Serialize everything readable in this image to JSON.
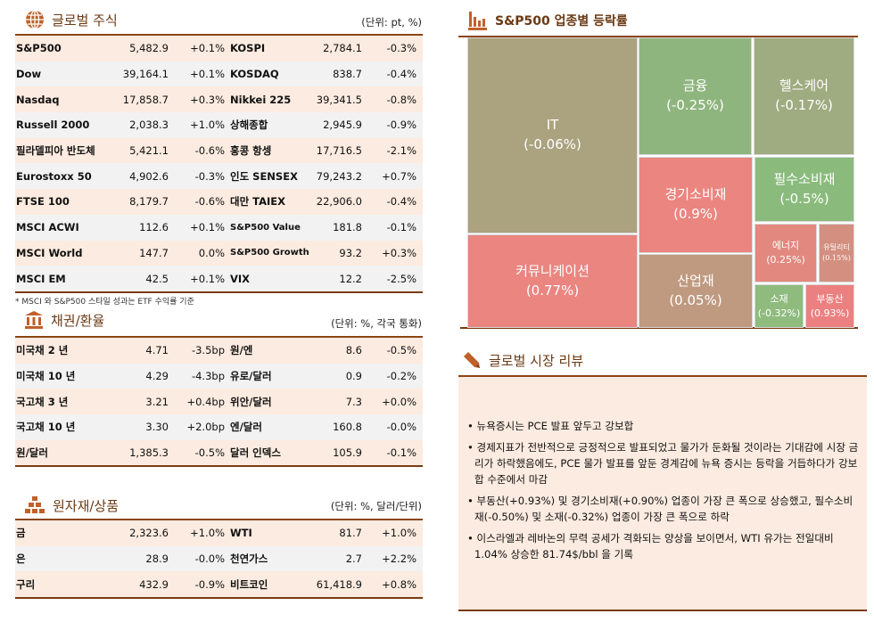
{
  "stocks": {
    "title": "글로벌 주식",
    "unit": "(단위: pt, %)",
    "rows": [
      [
        "S&P500",
        "5,482.9",
        "+0.1%",
        "KOSPI",
        "2,784.1",
        "-0.3%"
      ],
      [
        "Dow",
        "39,164.1",
        "+0.1%",
        "KOSDAQ",
        "838.7",
        "-0.4%"
      ],
      [
        "Nasdaq",
        "17,858.7",
        "+0.3%",
        "Nikkei 225",
        "39,341.5",
        "-0.8%"
      ],
      [
        "Russell 2000",
        "2,038.3",
        "+1.0%",
        "상해종합",
        "2,945.9",
        "-0.9%"
      ],
      [
        "필라델피아 반도체",
        "5,421.1",
        "-0.6%",
        "홍콩 항셍",
        "17,716.5",
        "-2.1%"
      ],
      [
        "Eurostoxx 50",
        "4,902.6",
        "-0.3%",
        "인도 SENSEX",
        "79,243.2",
        "+0.7%"
      ],
      [
        "FTSE 100",
        "8,179.7",
        "-0.6%",
        "대만 TAIEX",
        "22,906.0",
        "-0.4%"
      ],
      [
        "MSCI ACWI",
        "112.6",
        "+0.1%",
        "S&P500 Value",
        "181.8",
        "-0.1%"
      ],
      [
        "MSCI World",
        "147.7",
        "0.0%",
        "S&P500 Growth",
        "93.2",
        "+0.3%"
      ],
      [
        "MSCI EM",
        "42.5",
        "+0.1%",
        "VIX",
        "12.2",
        "-2.5%"
      ]
    ],
    "note": "* MSCI 와 S&P500 스타일 성과는 ETF 수익률 기준"
  },
  "bonds": {
    "title": "채권/환율",
    "unit": "(단위: %, 각국 통화)",
    "rows": [
      [
        "미국채 2 년",
        "4.71",
        "-3.5bp",
        "원/엔",
        "8.6",
        "-0.5%"
      ],
      [
        "미국채 10 년",
        "4.29",
        "-4.3bp",
        "유로/달러",
        "0.9",
        "-0.2%"
      ],
      [
        "국고채 3 년",
        "3.21",
        "+0.4bp",
        "위안/달러",
        "7.3",
        "+0.0%"
      ],
      [
        "국고채 10 년",
        "3.30",
        "+2.0bp",
        "엔/달러",
        "160.8",
        "-0.0%"
      ],
      [
        "원/달러",
        "1,385.3",
        "-0.5%",
        "달러 인덱스",
        "105.9",
        "-0.1%"
      ]
    ]
  },
  "commodities": {
    "title": "원자재/상품",
    "unit": "(단위: %, 달러/단위)",
    "rows": [
      [
        "금",
        "2,323.6",
        "+1.0%",
        "WTI",
        "81.7",
        "+1.0%"
      ],
      [
        "은",
        "28.9",
        "-0.0%",
        "천연가스",
        "2.7",
        "+2.2%"
      ],
      [
        "구리",
        "432.9",
        "-0.9%",
        "비트코인",
        "61,418.9",
        "+0.8%"
      ]
    ]
  },
  "treemap": {
    "title": "S&P500 업종별 등락률",
    "sectors": [
      {
        "name": "IT",
        "value": "(-0.06%)",
        "color": "#aba27f"
      },
      {
        "name": "커뮤니케이션",
        "value": "(0.77%)",
        "color": "#ea8580"
      },
      {
        "name": "금융",
        "value": "(-0.25%)",
        "color": "#8fb57f"
      },
      {
        "name": "헬스케어",
        "value": "(-0.17%)",
        "color": "#9fab80"
      },
      {
        "name": "경기소비재",
        "value": "(0.9%)",
        "color": "#ea8580"
      },
      {
        "name": "산업재",
        "value": "(0.05%)",
        "color": "#bf9a80"
      },
      {
        "name": "필수소비재",
        "value": "(-0.5%)",
        "color": "#8abb7d"
      },
      {
        "name": "에너지",
        "value": "(0.25%)",
        "color": "#e2887f"
      },
      {
        "name": "유틸리티",
        "value": "(0.15%)",
        "color": "#d48f80"
      },
      {
        "name": "소재",
        "value": "(-0.32%)",
        "color": "#8fbb7f"
      },
      {
        "name": "부동산",
        "value": "(0.93%)",
        "color": "#ec8080"
      }
    ]
  },
  "review": {
    "title": "글로벌 시장 리뷰",
    "bullets": [
      "• 뉴욕증시는 PCE 발표 앞두고 강보합",
      "• 경제지표가 전반적으로 긍정적으로 발표되었고 물가가 둔화될 것이라는 기대감에 시장 금리가 하락했음에도, PCE 물가 발표를 앞둔 경계감에 뉴욕 증시는 등락을 거듭하다가 강보합 수준에서 마감",
      "• 부동산(+0.93%) 및 경기소비재(+0.90%) 업종이 가장 큰 폭으로 상승했고, 필수소비재(-0.50%) 및 소재(-0.32%) 업종이 가장 큰 폭으로 하락",
      "• 이스라엘과 레바논의 무력 공세가 격화되는 양상을 보이면서, WTI 유가는 전일대비 1.04% 상승한 81.74$/bbl 을 기록"
    ]
  },
  "accent": "#8b4513"
}
